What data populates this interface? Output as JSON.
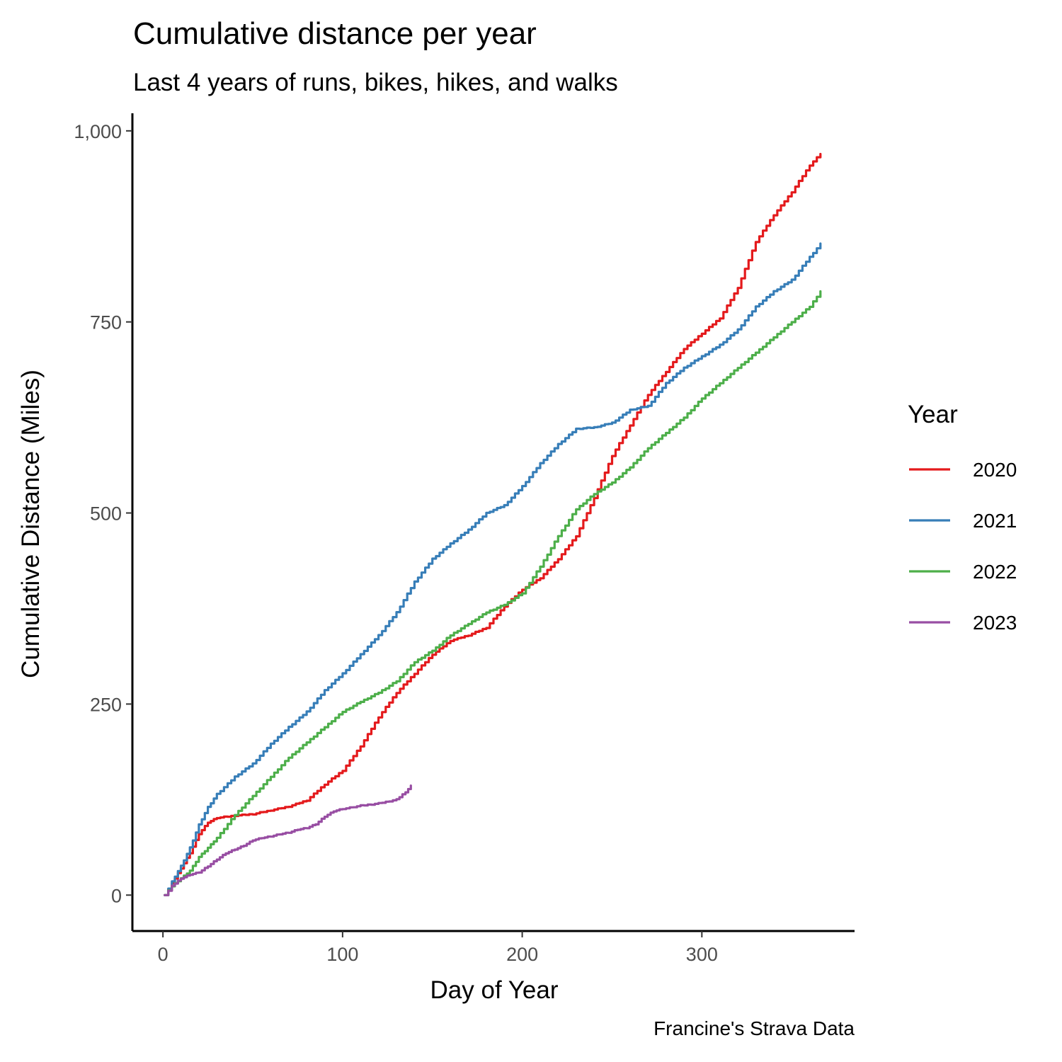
{
  "chart_data": {
    "type": "line",
    "title": "Cumulative distance per year",
    "subtitle": "Last 4 years of runs, bikes, hikes, and walks",
    "xlabel": "Day of Year",
    "ylabel": "Cumulative Distance (Miles)",
    "caption": "Francine's Strava Data",
    "xlim": [
      -17,
      385
    ],
    "ylim": [
      -47,
      1023
    ],
    "x_ticks": [
      0,
      100,
      200,
      300
    ],
    "x_tick_labels": [
      "0",
      "100",
      "200",
      "300"
    ],
    "y_ticks": [
      0,
      250,
      500,
      750,
      1000
    ],
    "y_tick_labels": [
      "0",
      "250",
      "500",
      "750",
      "1,000"
    ],
    "grid": false,
    "legend": {
      "title": "Year",
      "position": "right"
    },
    "series": [
      {
        "name": "2020",
        "color": "#E41A1C",
        "x": [
          1,
          5,
          10,
          15,
          20,
          25,
          30,
          40,
          50,
          60,
          70,
          80,
          90,
          100,
          110,
          120,
          130,
          140,
          150,
          160,
          170,
          180,
          190,
          200,
          210,
          220,
          230,
          240,
          250,
          260,
          270,
          280,
          290,
          300,
          310,
          320,
          330,
          340,
          350,
          360,
          366
        ],
        "y": [
          0,
          15,
          35,
          55,
          80,
          95,
          101,
          104,
          106,
          111,
          116,
          124,
          145,
          163,
          195,
          233,
          265,
          290,
          315,
          333,
          340,
          350,
          378,
          400,
          415,
          440,
          470,
          520,
          575,
          615,
          655,
          685,
          715,
          735,
          755,
          795,
          855,
          890,
          920,
          955,
          970
        ]
      },
      {
        "name": "2021",
        "color": "#377EB8",
        "x": [
          1,
          5,
          10,
          15,
          20,
          25,
          30,
          40,
          50,
          60,
          70,
          80,
          90,
          100,
          110,
          120,
          130,
          140,
          150,
          160,
          170,
          180,
          190,
          200,
          210,
          220,
          230,
          240,
          250,
          260,
          270,
          280,
          290,
          300,
          310,
          320,
          330,
          340,
          350,
          360,
          366
        ],
        "y": [
          0,
          18,
          38,
          62,
          92,
          115,
          132,
          155,
          172,
          198,
          220,
          240,
          268,
          290,
          315,
          340,
          370,
          410,
          440,
          460,
          478,
          500,
          510,
          535,
          565,
          590,
          610,
          612,
          618,
          635,
          640,
          670,
          690,
          705,
          720,
          740,
          770,
          790,
          805,
          835,
          852
        ]
      },
      {
        "name": "2022",
        "color": "#4DAF4A",
        "x": [
          1,
          5,
          10,
          15,
          20,
          25,
          30,
          40,
          50,
          60,
          70,
          80,
          90,
          100,
          110,
          120,
          130,
          140,
          150,
          160,
          170,
          180,
          190,
          200,
          210,
          220,
          230,
          240,
          250,
          260,
          270,
          280,
          290,
          300,
          310,
          320,
          330,
          340,
          350,
          360,
          366
        ],
        "y": [
          0,
          12,
          22,
          32,
          50,
          62,
          75,
          105,
          130,
          155,
          180,
          200,
          220,
          240,
          253,
          265,
          280,
          305,
          320,
          340,
          355,
          370,
          380,
          395,
          430,
          470,
          505,
          525,
          540,
          560,
          585,
          605,
          625,
          650,
          670,
          690,
          710,
          730,
          750,
          770,
          790
        ]
      },
      {
        "name": "2023",
        "color": "#984EA3",
        "x": [
          1,
          5,
          10,
          15,
          20,
          25,
          30,
          35,
          40,
          45,
          50,
          55,
          60,
          65,
          70,
          75,
          80,
          85,
          90,
          95,
          100,
          110,
          120,
          130,
          135,
          138
        ],
        "y": [
          0,
          12,
          22,
          27,
          30,
          38,
          47,
          55,
          60,
          65,
          72,
          75,
          77,
          80,
          82,
          86,
          88,
          93,
          103,
          110,
          113,
          117,
          120,
          125,
          135,
          143
        ]
      }
    ]
  }
}
